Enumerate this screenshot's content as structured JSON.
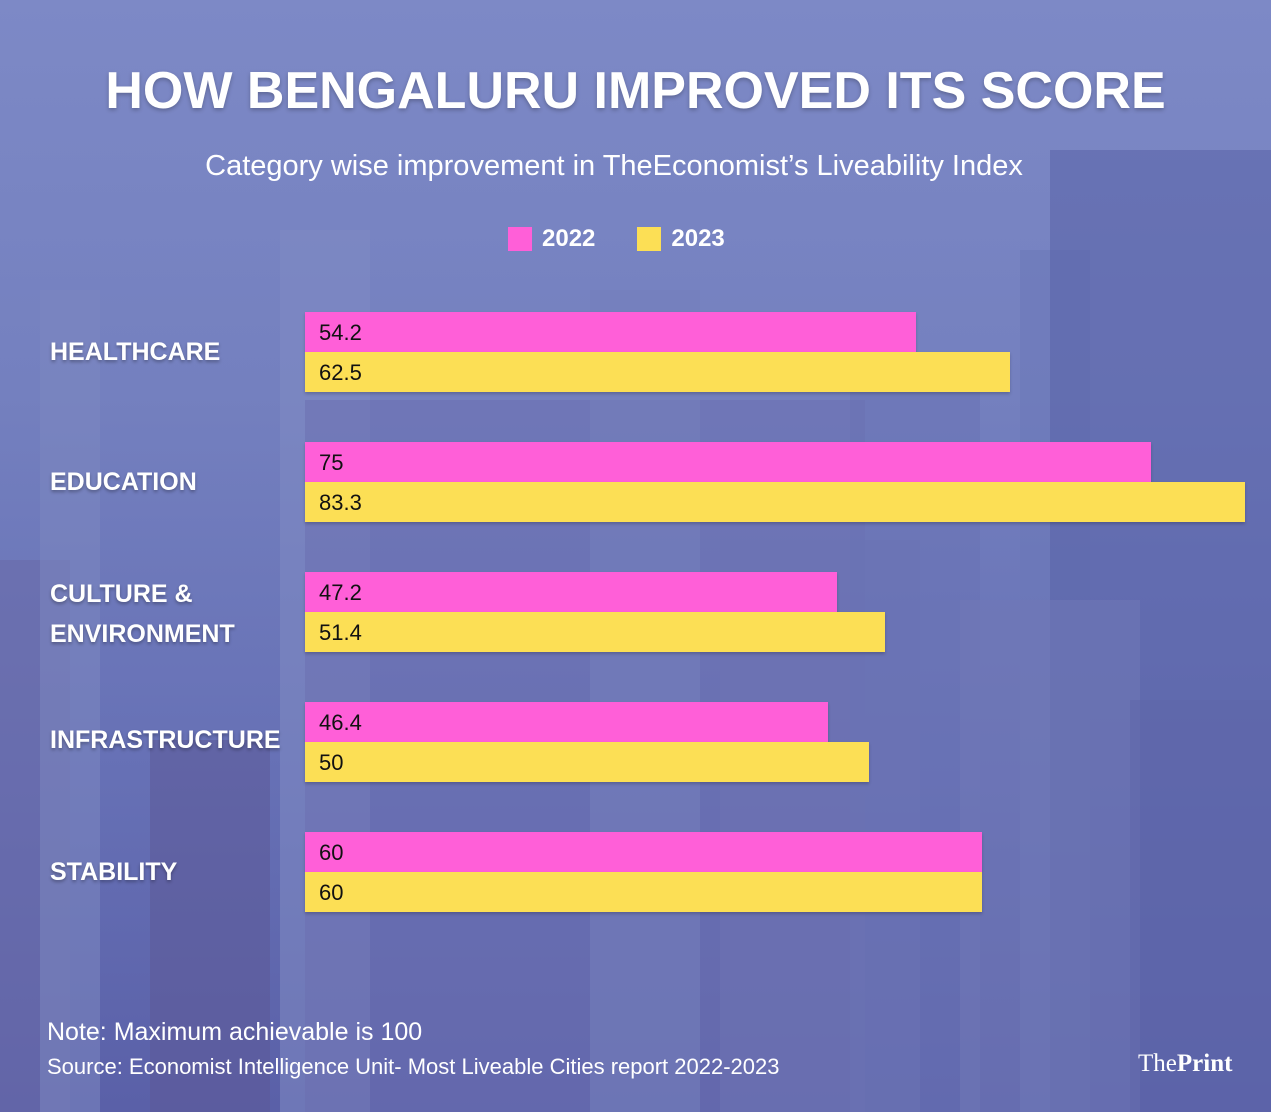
{
  "title": "HOW BENGALURU IMPROVED ITS SCORE",
  "subtitle": "Category wise improvement in TheEconomist’s Liveability Index",
  "note": "Note: Maximum achievable is 100",
  "source": "Source: Economist Intelligence  Unit- Most Liveable Cities report 2022-2023",
  "logo": {
    "the": "The",
    "print": "Print"
  },
  "colors": {
    "2022": "#ff5fd8",
    "2023": "#fcdf55",
    "background": "#7480bf"
  },
  "chart_data": {
    "type": "bar",
    "orientation": "horizontal",
    "title": "HOW BENGALURU IMPROVED ITS SCORE",
    "subtitle": "Category wise improvement in TheEconomist’s Liveability Index",
    "categories": [
      "HEALTHCARE",
      "EDUCATION",
      "CULTURE & ENVIRONMENT",
      "INFRASTRUCTURE",
      "STABILITY"
    ],
    "series": [
      {
        "name": "2022",
        "values": [
          54.2,
          75,
          47.2,
          46.4,
          60
        ],
        "labels": [
          "54.2",
          "75",
          "47.2",
          "46.4",
          "60"
        ]
      },
      {
        "name": "2023",
        "values": [
          62.5,
          83.3,
          51.4,
          50,
          60
        ],
        "labels": [
          "62.5",
          "83.3",
          "51.4",
          "50",
          "60"
        ]
      }
    ],
    "xlim": [
      0,
      100
    ],
    "grid": false,
    "legend": "top-center"
  }
}
